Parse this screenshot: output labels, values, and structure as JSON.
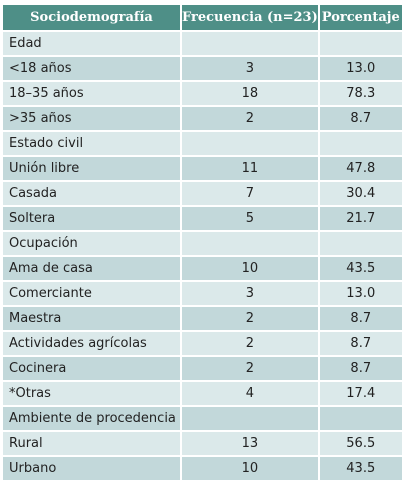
{
  "table": {
    "headers": [
      "Sociodemografía",
      "Frecuencia (n=23)",
      "Porcentaje"
    ],
    "rows": [
      [
        "Edad",
        "",
        ""
      ],
      [
        "<18 años",
        "3",
        "13.0"
      ],
      [
        "18–35 años",
        "18",
        "78.3"
      ],
      [
        ">35 años",
        "2",
        "8.7"
      ],
      [
        "Estado civil",
        "",
        ""
      ],
      [
        "Unión libre",
        "11",
        "47.8"
      ],
      [
        "Casada",
        "7",
        "30.4"
      ],
      [
        "Soltera",
        "5",
        "21.7"
      ],
      [
        "Ocupación",
        "",
        ""
      ],
      [
        "Ama de casa",
        "10",
        "43.5"
      ],
      [
        "Comerciante",
        "3",
        "13.0"
      ],
      [
        "Maestra",
        "2",
        "8.7"
      ],
      [
        "Actividades agrícolas",
        "2",
        "8.7"
      ],
      [
        "Cocinera",
        "2",
        "8.7"
      ],
      [
        "*Otras",
        "4",
        "17.4"
      ],
      [
        "Ambiente de procedencia",
        "",
        ""
      ],
      [
        "Rural",
        "13",
        "56.5"
      ],
      [
        "Urbano",
        "10",
        "43.5"
      ]
    ]
  },
  "colors": {
    "header_bg": "#4e8f87",
    "row_light": "#dbe9ea",
    "row_dark": "#c2d8da"
  }
}
